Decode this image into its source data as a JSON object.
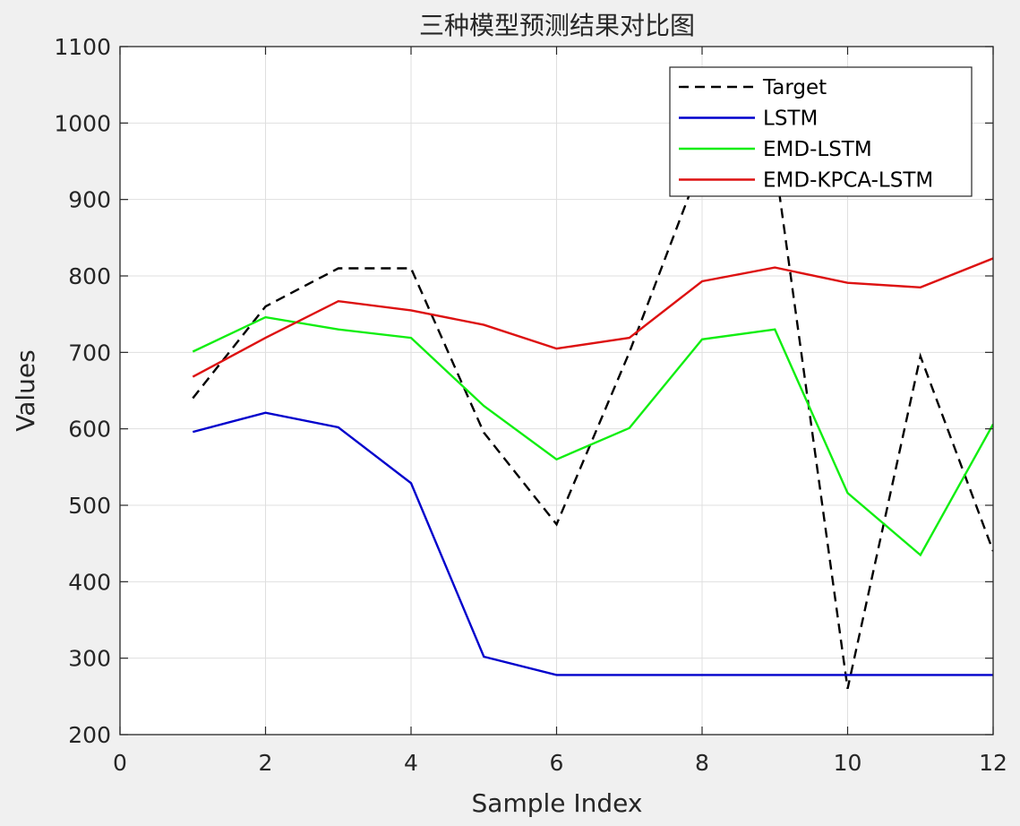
{
  "chart_data": {
    "type": "line",
    "title": "三种模型预测结果对比图",
    "xlabel": "Sample Index",
    "ylabel": "Values",
    "xlim": [
      0,
      12
    ],
    "ylim": [
      200,
      1100
    ],
    "xticks": [
      "0",
      "2",
      "4",
      "6",
      "8",
      "10",
      "12"
    ],
    "yticks": [
      "200",
      "300",
      "400",
      "500",
      "600",
      "700",
      "800",
      "900",
      "1000",
      "1100"
    ],
    "grid": true,
    "legend_position": "top-right",
    "x": [
      1,
      2,
      3,
      4,
      5,
      6,
      7,
      8,
      9,
      10,
      11,
      12
    ],
    "series": [
      {
        "name": "Target",
        "style": "dashed",
        "color": "#000000",
        "values": [
          640,
          760,
          810,
          810,
          595,
          475,
          700,
          950,
          950,
          260,
          695,
          440
        ]
      },
      {
        "name": "LSTM",
        "style": "solid",
        "color": "#0000cc",
        "values": [
          596,
          621,
          602,
          529,
          302,
          278,
          278,
          278,
          278,
          278,
          278,
          278
        ]
      },
      {
        "name": "EMD-LSTM",
        "style": "solid",
        "color": "#11ee11",
        "values": [
          701,
          746,
          730,
          719,
          630,
          560,
          601,
          717,
          730,
          516,
          435,
          606
        ]
      },
      {
        "name": "EMD-KPCA-LSTM",
        "style": "solid",
        "color": "#dd1111",
        "values": [
          668,
          719,
          767,
          755,
          736,
          705,
          719,
          793,
          811,
          791,
          785,
          823
        ]
      }
    ]
  }
}
